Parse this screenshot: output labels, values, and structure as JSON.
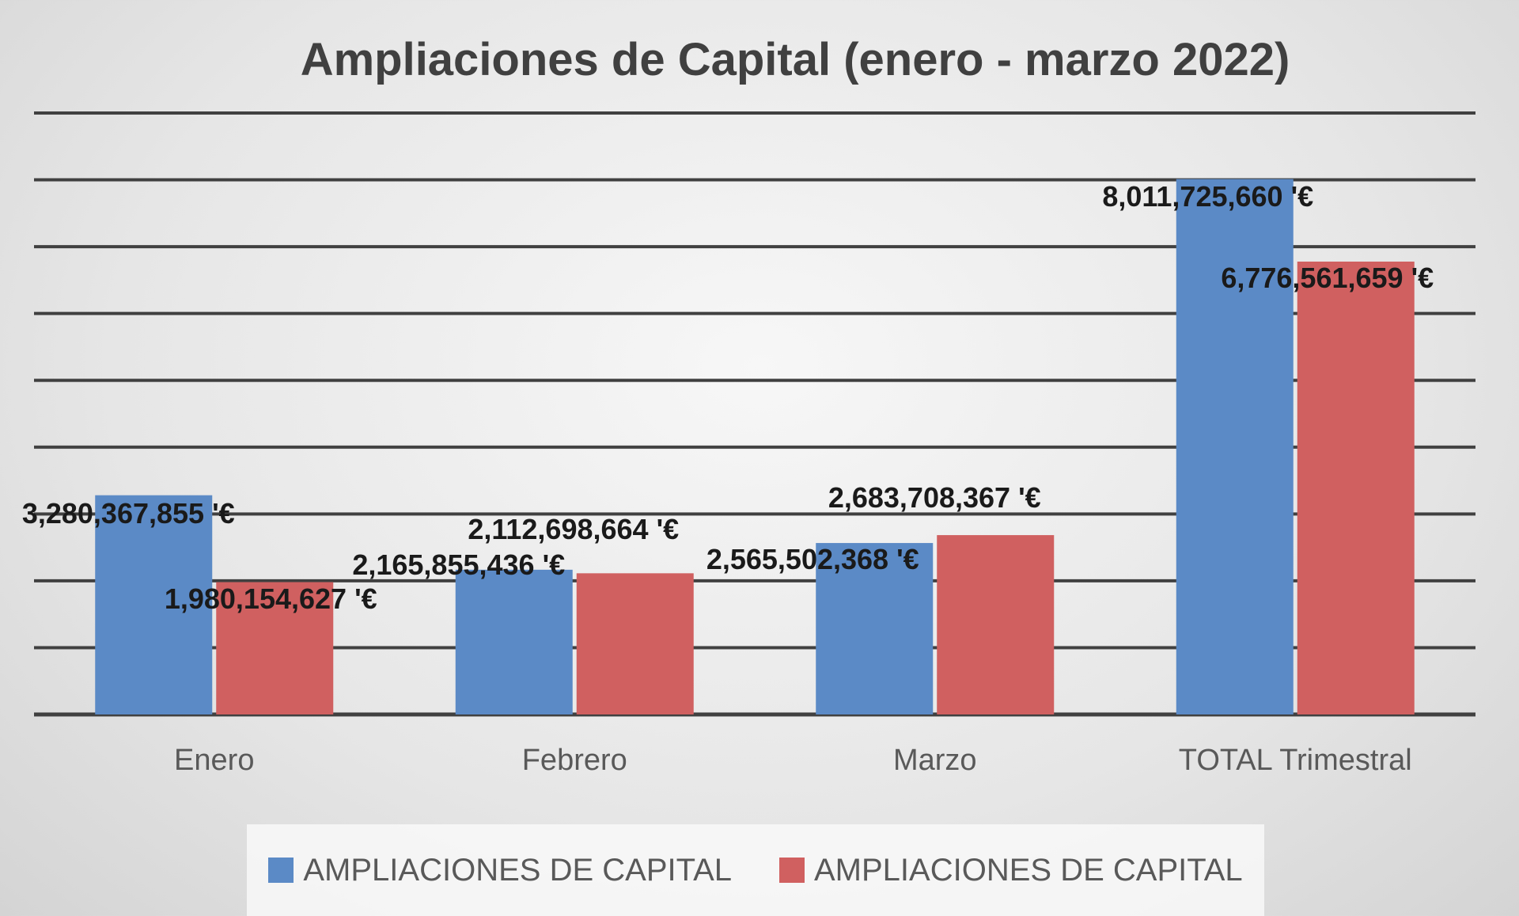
{
  "chart_data": {
    "type": "bar",
    "title": "Ampliaciones de Capital (enero - marzo 2022)",
    "categories": [
      "Enero",
      "Febrero",
      "Marzo",
      "TOTAL Trimestral"
    ],
    "series": [
      {
        "name": "AMPLIACIONES DE CAPITAL",
        "color": "#5b8ac6",
        "values": [
          3280367855,
          2165855436,
          2565502368,
          8011725660
        ],
        "labels": [
          "3,280,367,855 '€",
          "2,165,855,436 '€",
          "2,565,502,368 '€",
          "8,011,725,660 '€"
        ]
      },
      {
        "name": "AMPLIACIONES DE CAPITAL",
        "color": "#d06060",
        "values": [
          1980154627,
          2112698664,
          2683708367,
          6776561659
        ],
        "labels": [
          "1,980,154,627 '€",
          "2,112,698,664 '€",
          "2,683,708,367 '€",
          "6,776,561,659 '€"
        ]
      }
    ],
    "ylim": [
      0,
      9000000000
    ],
    "grid_step": 1000000000,
    "grid": true,
    "y_axis_labels_visible": false,
    "legend_position": "bottom"
  }
}
